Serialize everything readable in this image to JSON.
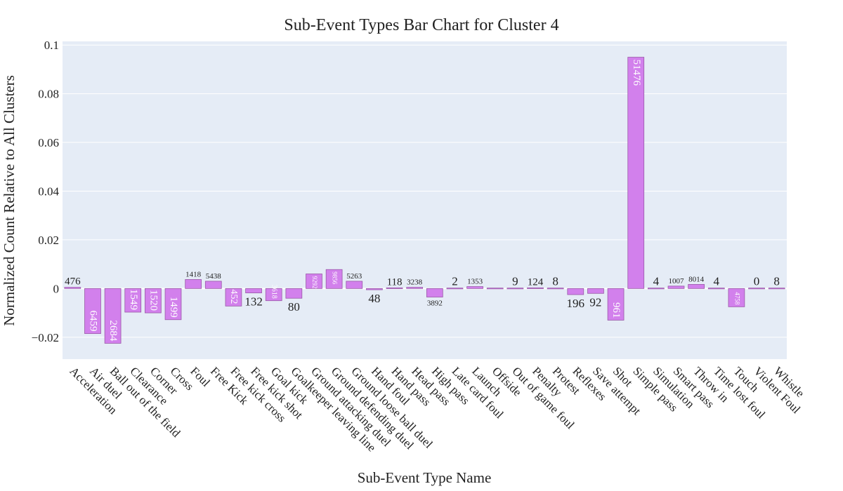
{
  "chart_data": {
    "type": "bar",
    "title": "Sub-Event Types Bar Chart for Cluster 4",
    "xlabel": "Sub-Event Type Name",
    "ylabel": "Normalized Count Relative to All Clusters",
    "ylim": [
      -0.029,
      0.1015
    ],
    "yticks": [
      -0.02,
      0,
      0.02,
      0.04,
      0.06,
      0.08,
      0.1
    ],
    "ytick_labels": [
      "−0.02",
      "0",
      "0.02",
      "0.04",
      "0.06",
      "0.08",
      "0.1"
    ],
    "grid": true,
    "categories": [
      "Acceleration",
      "Air duel",
      "Ball out of the field",
      "Clearance",
      "Corner",
      "Cross",
      "Foul",
      "Free Kick",
      "Free kick cross",
      "Free kick shot",
      "Goal kick",
      "Goalkeeper leaving line",
      "Ground attacking duel",
      "Ground defending duel",
      "Ground loose ball duel",
      "Hand foul",
      "Hand pass",
      "Head pass",
      "High pass",
      "Late card foul",
      "Launch",
      "Offside",
      "Out of game foul",
      "Penalty",
      "Protest",
      "Reflexes",
      "Save attempt",
      "Shot",
      "Simple pass",
      "Simulation",
      "Smart pass",
      "Throw in",
      "Time lost foul",
      "Touch",
      "Violent Foul",
      "Whistle"
    ],
    "values": [
      0.0005,
      -0.0185,
      -0.0225,
      -0.0097,
      -0.01,
      -0.0128,
      0.0037,
      0.003,
      -0.0072,
      -0.0018,
      -0.005,
      -0.004,
      0.006,
      0.0078,
      0.003,
      -0.0005,
      0.0003,
      0.0005,
      -0.0035,
      0.0002,
      0.0008,
      0.0002,
      0.0002,
      0.0003,
      0.0002,
      -0.0025,
      -0.002,
      -0.013,
      0.095,
      0.0002,
      0.001,
      0.0017,
      0.0002,
      -0.0075,
      0.0002,
      0.0002
    ],
    "bar_labels": [
      "476",
      "6459",
      "2684",
      "1549",
      "1520",
      "1499",
      "1418",
      "5438",
      "452",
      "132",
      "3618",
      "80",
      "9292",
      "9856",
      "5263",
      "48",
      "118",
      "3238",
      "3892",
      "2",
      "1353",
      "",
      "9",
      "124",
      "8",
      "196",
      "92",
      "961",
      "51476",
      "4",
      "1007",
      "8014",
      "4",
      "4758",
      "0",
      "8"
    ],
    "label_inside": [
      false,
      true,
      true,
      true,
      true,
      true,
      false,
      false,
      true,
      false,
      true,
      false,
      true,
      true,
      false,
      false,
      false,
      false,
      false,
      false,
      false,
      false,
      false,
      false,
      false,
      false,
      false,
      true,
      true,
      false,
      false,
      false,
      false,
      true,
      false,
      false
    ],
    "label_font_size": [
      15,
      15,
      15,
      15,
      15,
      15,
      11,
      11,
      14,
      17,
      10,
      17,
      9,
      9,
      11,
      17,
      15,
      11,
      11,
      17,
      11,
      17,
      17,
      15,
      17,
      17,
      17,
      15,
      15,
      17,
      11,
      11,
      17,
      9,
      17,
      17
    ],
    "colors": {
      "bar_fill": "#d280ec",
      "bar_stroke": "#9a5aa8",
      "plot_bg": "#e5ecf6",
      "grid": "#ffffff"
    }
  }
}
